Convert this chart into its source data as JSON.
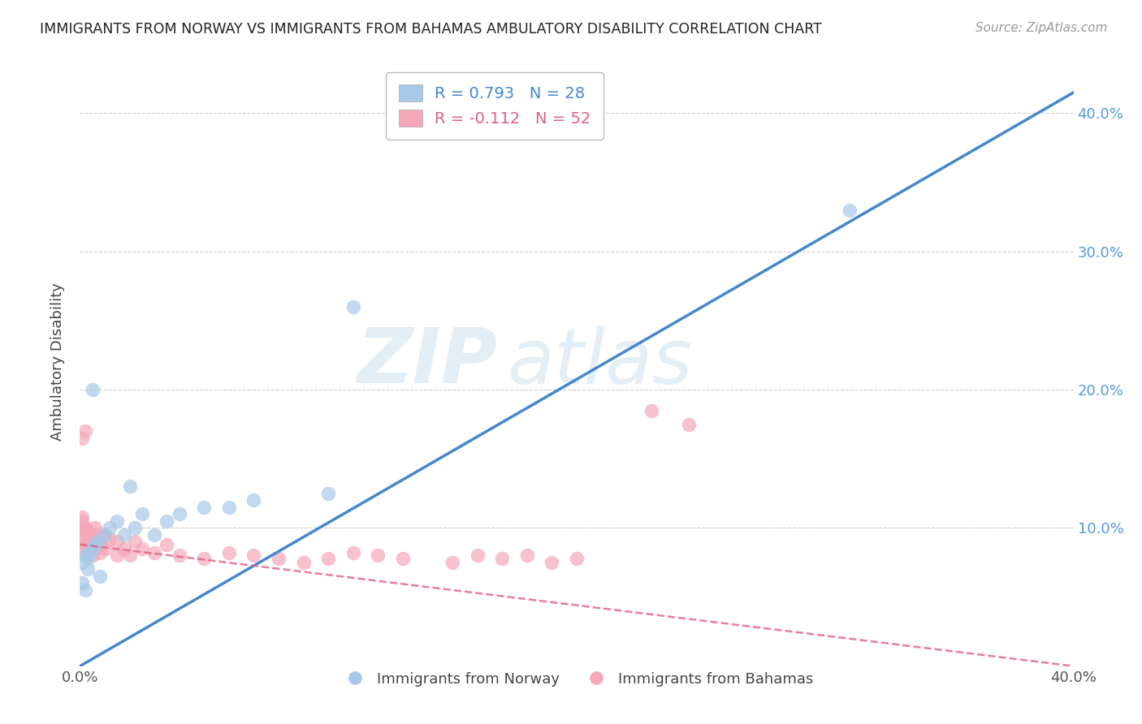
{
  "title": "IMMIGRANTS FROM NORWAY VS IMMIGRANTS FROM BAHAMAS AMBULATORY DISABILITY CORRELATION CHART",
  "source": "Source: ZipAtlas.com",
  "ylabel": "Ambulatory Disability",
  "xlim": [
    0.0,
    0.4
  ],
  "ylim": [
    0.0,
    0.44
  ],
  "norway_R": 0.793,
  "norway_N": 28,
  "bahamas_R": -0.112,
  "bahamas_N": 52,
  "norway_color": "#a8c8e8",
  "bahamas_color": "#f4a8b8",
  "norway_line_color": "#4488cc",
  "bahamas_line_color": "#e06080",
  "norway_line_x0": 0.0,
  "norway_line_y0": 0.0,
  "norway_line_x1": 0.4,
  "norway_line_y1": 0.415,
  "bahamas_line_x0": 0.0,
  "bahamas_line_y0": 0.088,
  "bahamas_line_x1": 0.4,
  "bahamas_line_y1": 0.0,
  "norway_x": [
    0.001,
    0.002,
    0.003,
    0.004,
    0.005,
    0.006,
    0.007,
    0.008,
    0.01,
    0.012,
    0.015,
    0.018,
    0.02,
    0.022,
    0.025,
    0.03,
    0.035,
    0.04,
    0.05,
    0.06,
    0.07,
    0.1,
    0.11,
    0.31,
    0.001,
    0.002,
    0.003,
    0.005
  ],
  "norway_y": [
    0.075,
    0.08,
    0.078,
    0.082,
    0.085,
    0.088,
    0.09,
    0.065,
    0.095,
    0.1,
    0.105,
    0.095,
    0.13,
    0.1,
    0.11,
    0.095,
    0.105,
    0.11,
    0.115,
    0.115,
    0.12,
    0.125,
    0.26,
    0.33,
    0.06,
    0.055,
    0.07,
    0.2
  ],
  "bahamas_x": [
    0.001,
    0.001,
    0.001,
    0.001,
    0.001,
    0.002,
    0.002,
    0.002,
    0.003,
    0.003,
    0.003,
    0.004,
    0.004,
    0.005,
    0.005,
    0.006,
    0.006,
    0.007,
    0.007,
    0.008,
    0.008,
    0.01,
    0.01,
    0.012,
    0.015,
    0.015,
    0.018,
    0.02,
    0.022,
    0.025,
    0.03,
    0.035,
    0.04,
    0.05,
    0.06,
    0.07,
    0.08,
    0.09,
    0.1,
    0.11,
    0.12,
    0.13,
    0.15,
    0.16,
    0.17,
    0.18,
    0.19,
    0.2,
    0.23,
    0.245,
    0.001,
    0.002
  ],
  "bahamas_y": [
    0.085,
    0.092,
    0.1,
    0.105,
    0.108,
    0.088,
    0.095,
    0.1,
    0.082,
    0.09,
    0.098,
    0.085,
    0.095,
    0.08,
    0.092,
    0.085,
    0.1,
    0.088,
    0.095,
    0.082,
    0.09,
    0.085,
    0.095,
    0.092,
    0.08,
    0.09,
    0.085,
    0.08,
    0.09,
    0.085,
    0.082,
    0.088,
    0.08,
    0.078,
    0.082,
    0.08,
    0.078,
    0.075,
    0.078,
    0.082,
    0.08,
    0.078,
    0.075,
    0.08,
    0.078,
    0.08,
    0.075,
    0.078,
    0.185,
    0.175,
    0.165,
    0.17
  ],
  "watermark_zip": "ZIP",
  "watermark_atlas": "atlas",
  "background_color": "#ffffff",
  "grid_color": "#cccccc",
  "right_tick_color": "#5599dd",
  "legend_text_color_norway": "#4488cc",
  "legend_text_color_bahamas": "#e06080"
}
